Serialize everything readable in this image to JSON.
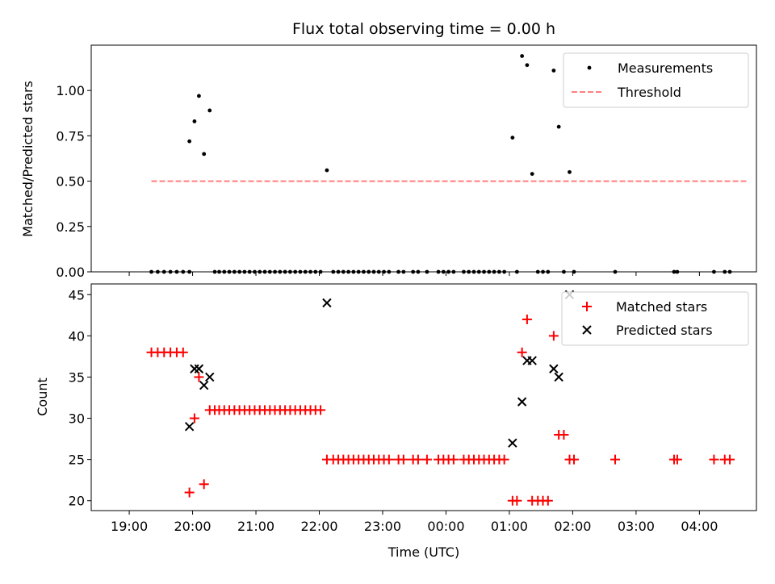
{
  "chart_data": [
    {
      "type": "scatter",
      "title": "Flux total observing time = 0.00 h",
      "xlabel": "",
      "ylabel": "Matched/Predicted stars",
      "ylim": [
        0,
        1.25
      ],
      "xlim": [
        -0.6,
        9.9
      ],
      "x_unit": "hours since 19:00 UTC",
      "yticks": [
        "0.00",
        "0.25",
        "0.50",
        "0.75",
        "1.00"
      ],
      "ytick_values": [
        0,
        0.25,
        0.5,
        0.75,
        1.0
      ],
      "legend_position": "top-right",
      "legend": [
        "Measurements",
        "Threshold"
      ],
      "colors": {
        "measurements": "#000000",
        "threshold": "#ff7f7f"
      },
      "threshold": {
        "name": "Threshold",
        "value": 0.5,
        "x_start": 0.35,
        "x_end": 9.75
      },
      "series": [
        {
          "name": "Measurements",
          "marker": "dot",
          "points": [
            [
              0.35,
              0
            ],
            [
              0.45,
              0
            ],
            [
              0.55,
              0
            ],
            [
              0.65,
              0
            ],
            [
              0.75,
              0
            ],
            [
              0.85,
              0
            ],
            [
              0.95,
              0
            ],
            [
              0.95,
              0.72
            ],
            [
              1.03,
              0.83
            ],
            [
              1.1,
              0.97
            ],
            [
              1.18,
              0.65
            ],
            [
              1.27,
              0.89
            ],
            [
              1.35,
              0
            ],
            [
              1.42,
              0
            ],
            [
              1.5,
              0
            ],
            [
              1.58,
              0
            ],
            [
              1.66,
              0
            ],
            [
              1.74,
              0
            ],
            [
              1.82,
              0
            ],
            [
              1.9,
              0
            ],
            [
              1.98,
              0
            ],
            [
              2.06,
              0
            ],
            [
              2.14,
              0
            ],
            [
              2.22,
              0
            ],
            [
              2.3,
              0
            ],
            [
              2.38,
              0
            ],
            [
              2.46,
              0
            ],
            [
              2.54,
              0
            ],
            [
              2.62,
              0
            ],
            [
              2.7,
              0
            ],
            [
              2.78,
              0
            ],
            [
              2.86,
              0
            ],
            [
              2.94,
              0
            ],
            [
              3.02,
              0
            ],
            [
              3.12,
              0.56
            ],
            [
              3.22,
              0
            ],
            [
              3.3,
              0
            ],
            [
              3.38,
              0
            ],
            [
              3.46,
              0
            ],
            [
              3.54,
              0
            ],
            [
              3.62,
              0
            ],
            [
              3.7,
              0
            ],
            [
              3.78,
              0
            ],
            [
              3.86,
              0
            ],
            [
              3.94,
              0
            ],
            [
              4.02,
              0
            ],
            [
              4.1,
              0
            ],
            [
              4.25,
              0
            ],
            [
              4.33,
              0
            ],
            [
              4.48,
              0
            ],
            [
              4.56,
              0
            ],
            [
              4.7,
              0
            ],
            [
              4.88,
              0
            ],
            [
              4.96,
              0
            ],
            [
              5.04,
              0
            ],
            [
              5.12,
              0
            ],
            [
              5.28,
              0
            ],
            [
              5.36,
              0
            ],
            [
              5.44,
              0
            ],
            [
              5.52,
              0
            ],
            [
              5.6,
              0
            ],
            [
              5.68,
              0
            ],
            [
              5.76,
              0
            ],
            [
              5.84,
              0
            ],
            [
              5.92,
              0
            ],
            [
              6.05,
              0.74
            ],
            [
              6.12,
              0
            ],
            [
              6.2,
              1.19
            ],
            [
              6.28,
              1.14
            ],
            [
              6.36,
              0.54
            ],
            [
              6.45,
              0
            ],
            [
              6.53,
              0
            ],
            [
              6.61,
              0
            ],
            [
              6.7,
              1.11
            ],
            [
              6.78,
              0.8
            ],
            [
              6.86,
              0
            ],
            [
              6.95,
              0.55
            ],
            [
              7.02,
              0
            ],
            [
              7.67,
              0
            ],
            [
              8.6,
              0
            ],
            [
              8.65,
              0
            ],
            [
              9.23,
              0
            ],
            [
              9.4,
              0
            ],
            [
              9.48,
              0
            ]
          ]
        }
      ]
    },
    {
      "type": "scatter",
      "title": "",
      "xlabel": "Time (UTC)",
      "ylabel": "Count",
      "ylim": [
        18.8,
        46.3
      ],
      "xlim": [
        -0.6,
        9.9
      ],
      "x_unit": "hours since 19:00 UTC",
      "yticks": [
        "20",
        "25",
        "30",
        "35",
        "40",
        "45"
      ],
      "ytick_values": [
        20,
        25,
        30,
        35,
        40,
        45
      ],
      "xticks": [
        "19:00",
        "20:00",
        "21:00",
        "22:00",
        "23:00",
        "00:00",
        "01:00",
        "02:00",
        "03:00",
        "04:00"
      ],
      "xtick_values": [
        0,
        1,
        2,
        3,
        4,
        5,
        6,
        7,
        8,
        9
      ],
      "legend_position": "top-right",
      "legend": [
        "Matched stars",
        "Predicted stars"
      ],
      "colors": {
        "matched": "#ff0000",
        "predicted": "#000000"
      },
      "series": [
        {
          "name": "Matched stars",
          "marker": "plus",
          "points": [
            [
              0.35,
              38
            ],
            [
              0.45,
              38
            ],
            [
              0.55,
              38
            ],
            [
              0.65,
              38
            ],
            [
              0.75,
              38
            ],
            [
              0.85,
              38
            ],
            [
              0.95,
              21
            ],
            [
              1.03,
              30
            ],
            [
              1.1,
              35
            ],
            [
              1.18,
              22
            ],
            [
              1.27,
              31
            ],
            [
              1.35,
              31
            ],
            [
              1.42,
              31
            ],
            [
              1.5,
              31
            ],
            [
              1.58,
              31
            ],
            [
              1.66,
              31
            ],
            [
              1.74,
              31
            ],
            [
              1.82,
              31
            ],
            [
              1.9,
              31
            ],
            [
              1.98,
              31
            ],
            [
              2.06,
              31
            ],
            [
              2.14,
              31
            ],
            [
              2.22,
              31
            ],
            [
              2.3,
              31
            ],
            [
              2.38,
              31
            ],
            [
              2.46,
              31
            ],
            [
              2.54,
              31
            ],
            [
              2.62,
              31
            ],
            [
              2.7,
              31
            ],
            [
              2.78,
              31
            ],
            [
              2.86,
              31
            ],
            [
              2.94,
              31
            ],
            [
              3.02,
              31
            ],
            [
              3.12,
              25
            ],
            [
              3.22,
              25
            ],
            [
              3.3,
              25
            ],
            [
              3.38,
              25
            ],
            [
              3.46,
              25
            ],
            [
              3.54,
              25
            ],
            [
              3.62,
              25
            ],
            [
              3.7,
              25
            ],
            [
              3.78,
              25
            ],
            [
              3.86,
              25
            ],
            [
              3.94,
              25
            ],
            [
              4.02,
              25
            ],
            [
              4.1,
              25
            ],
            [
              4.25,
              25
            ],
            [
              4.33,
              25
            ],
            [
              4.48,
              25
            ],
            [
              4.56,
              25
            ],
            [
              4.7,
              25
            ],
            [
              4.88,
              25
            ],
            [
              4.96,
              25
            ],
            [
              5.04,
              25
            ],
            [
              5.12,
              25
            ],
            [
              5.28,
              25
            ],
            [
              5.36,
              25
            ],
            [
              5.44,
              25
            ],
            [
              5.52,
              25
            ],
            [
              5.6,
              25
            ],
            [
              5.68,
              25
            ],
            [
              5.76,
              25
            ],
            [
              5.84,
              25
            ],
            [
              5.92,
              25
            ],
            [
              6.05,
              20
            ],
            [
              6.12,
              20
            ],
            [
              6.2,
              38
            ],
            [
              6.28,
              42
            ],
            [
              6.36,
              20
            ],
            [
              6.45,
              20
            ],
            [
              6.53,
              20
            ],
            [
              6.61,
              20
            ],
            [
              6.7,
              40
            ],
            [
              6.78,
              28
            ],
            [
              6.86,
              28
            ],
            [
              6.95,
              25
            ],
            [
              7.02,
              25
            ],
            [
              7.67,
              25
            ],
            [
              8.6,
              25
            ],
            [
              8.65,
              25
            ],
            [
              9.23,
              25
            ],
            [
              9.4,
              25
            ],
            [
              9.48,
              25
            ]
          ]
        },
        {
          "name": "Predicted stars",
          "marker": "x",
          "points": [
            [
              0.95,
              29
            ],
            [
              1.03,
              36
            ],
            [
              1.1,
              36
            ],
            [
              1.18,
              34
            ],
            [
              1.27,
              35
            ],
            [
              3.12,
              44
            ],
            [
              6.05,
              27
            ],
            [
              6.2,
              32
            ],
            [
              6.28,
              37
            ],
            [
              6.36,
              37
            ],
            [
              6.7,
              36
            ],
            [
              6.78,
              35
            ],
            [
              6.95,
              45
            ]
          ]
        }
      ]
    }
  ]
}
